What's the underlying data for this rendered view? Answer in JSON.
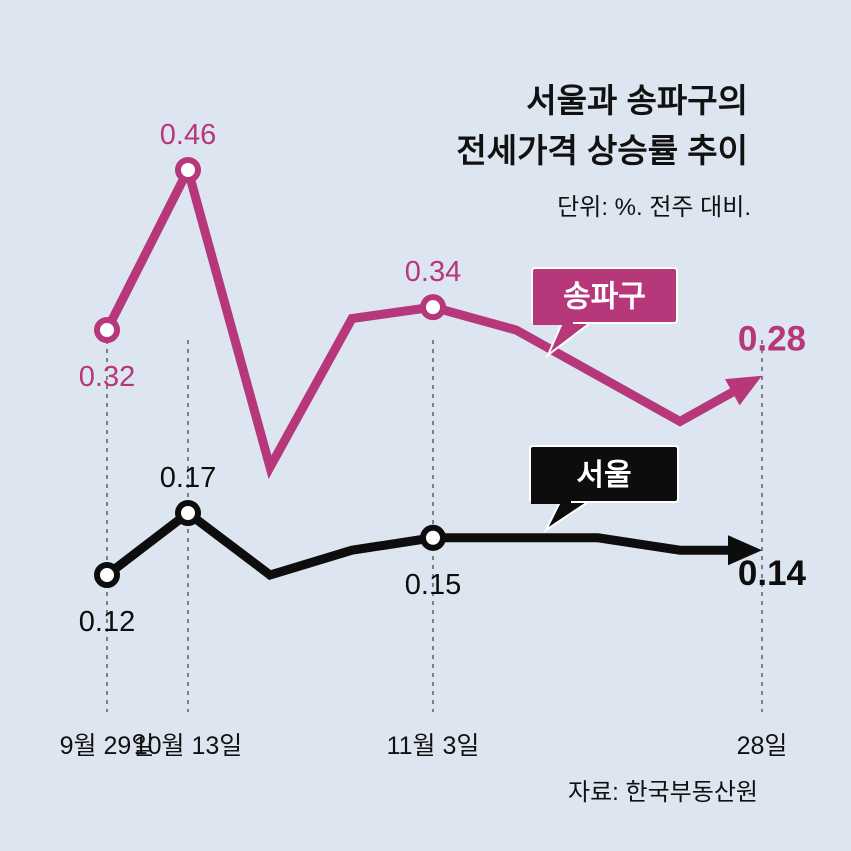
{
  "title": {
    "line1": "서울과 송파구의",
    "line2": "전세가격 상승률 추이"
  },
  "unit": "단위: %. 전주 대비.",
  "source": "자료: 한국부동산원",
  "colors": {
    "background": "#dde6f0",
    "songpa": "#b6377a",
    "seoul": "#0d0d0d",
    "guide": "#555555"
  },
  "chart_data": {
    "type": "line",
    "title": "서울과 송파구의 전세가격 상승률 추이",
    "unit_note": "단위: %. 전주 대비.",
    "x": [
      0,
      1,
      2,
      3,
      4,
      5,
      6,
      7,
      8
    ],
    "tick_labels": [
      {
        "x": 0,
        "label": "9월 29일"
      },
      {
        "x": 1,
        "label": "10월 13일"
      },
      {
        "x": 4,
        "label": "11월 3일"
      },
      {
        "x": 8,
        "label": "28일"
      }
    ],
    "series": [
      {
        "name": "송파구",
        "values": [
          0.32,
          0.46,
          0.2,
          0.33,
          0.34,
          0.32,
          0.28,
          0.24,
          0.28
        ],
        "labels": [
          {
            "index": 0,
            "text": "0.32",
            "pos": "below"
          },
          {
            "index": 1,
            "text": "0.46",
            "pos": "above"
          },
          {
            "index": 4,
            "text": "0.34",
            "pos": "above"
          },
          {
            "index": 8,
            "text": "0.28",
            "pos": "end",
            "bold": true
          }
        ],
        "markers": [
          0,
          1,
          4
        ]
      },
      {
        "name": "서울",
        "values": [
          0.12,
          0.17,
          0.12,
          0.14,
          0.15,
          0.15,
          0.15,
          0.14,
          0.14
        ],
        "labels": [
          {
            "index": 0,
            "text": "0.12",
            "pos": "below"
          },
          {
            "index": 1,
            "text": "0.17",
            "pos": "above"
          },
          {
            "index": 4,
            "text": "0.15",
            "pos": "below"
          },
          {
            "index": 8,
            "text": "0.14",
            "pos": "end",
            "bold": true
          }
        ],
        "markers": [
          0,
          1,
          4
        ]
      }
    ]
  }
}
